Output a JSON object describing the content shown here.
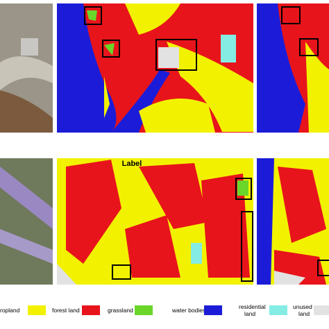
{
  "legend": {
    "title": "Label",
    "items": [
      {
        "label": "ropland",
        "color": "#f2f200"
      },
      {
        "label": "forest land",
        "color": "#e8141b"
      },
      {
        "label": "grassland",
        "color": "#6ad62a"
      },
      {
        "label": "water bodies",
        "color": "#1c1cd8"
      },
      {
        "label": "residential land",
        "color": "#84ece2"
      },
      {
        "label": "unused land",
        "color": "#e2e2e2"
      }
    ]
  }
}
